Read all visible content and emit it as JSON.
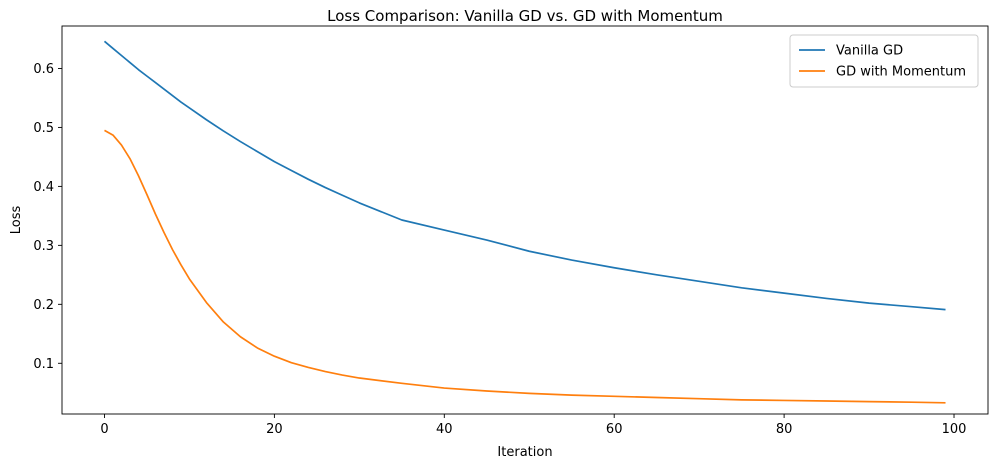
{
  "chart_data": {
    "type": "line",
    "title": "Loss Comparison: Vanilla GD vs. GD with Momentum",
    "xlabel": "Iteration",
    "ylabel": "Loss",
    "xlim": [
      -5,
      104
    ],
    "ylim": [
      0.014,
      0.672
    ],
    "xticks": [
      0,
      20,
      40,
      60,
      80,
      100
    ],
    "yticks": [
      0.1,
      0.2,
      0.3,
      0.4,
      0.5,
      0.6
    ],
    "xtick_labels": [
      "0",
      "20",
      "40",
      "60",
      "80",
      "100"
    ],
    "ytick_labels": [
      "0.1",
      "0.2",
      "0.3",
      "0.4",
      "0.5",
      "0.6"
    ],
    "grid": false,
    "legend_position": "top-right",
    "x": [
      0,
      1,
      2,
      3,
      4,
      5,
      6,
      7,
      8,
      9,
      10,
      12,
      14,
      16,
      18,
      20,
      22,
      24,
      26,
      28,
      30,
      35,
      40,
      45,
      50,
      55,
      60,
      65,
      70,
      75,
      80,
      85,
      90,
      95,
      99
    ],
    "series": [
      {
        "name": "Vanilla GD",
        "color": "#1f77b4",
        "values": [
          0.646,
          0.634,
          0.622,
          0.61,
          0.598,
          0.587,
          0.576,
          0.565,
          0.554,
          0.543,
          0.533,
          0.513,
          0.494,
          0.476,
          0.459,
          0.442,
          0.427,
          0.412,
          0.398,
          0.385,
          0.372,
          0.343,
          0.326,
          0.309,
          0.29,
          0.275,
          0.262,
          0.25,
          0.239,
          0.228,
          0.219,
          0.21,
          0.202,
          0.196,
          0.191
        ]
      },
      {
        "name": "GD with Momentum",
        "color": "#ff7f0e",
        "values": [
          0.495,
          0.487,
          0.47,
          0.447,
          0.418,
          0.386,
          0.353,
          0.322,
          0.293,
          0.267,
          0.243,
          0.203,
          0.17,
          0.145,
          0.126,
          0.112,
          0.101,
          0.093,
          0.086,
          0.08,
          0.075,
          0.066,
          0.058,
          0.053,
          0.049,
          0.046,
          0.044,
          0.042,
          0.04,
          0.038,
          0.037,
          0.036,
          0.035,
          0.034,
          0.033
        ]
      }
    ]
  }
}
